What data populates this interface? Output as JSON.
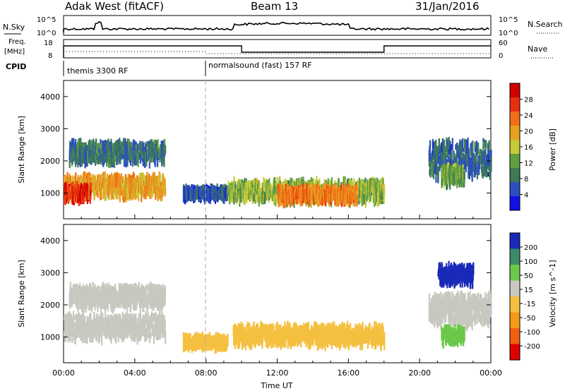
{
  "header": {
    "station": "Adak West (fitACF)",
    "beam": "Beam 13",
    "date": "31/Jan/2016"
  },
  "strips": {
    "sky": {
      "label": "N.Sky",
      "right_label": "N.Search",
      "left_ticks": [
        "10^5",
        "10^0"
      ],
      "right_ticks": [
        "10^5",
        "10^0"
      ]
    },
    "freq": {
      "label_line1": "Freq.",
      "label_line2": "[MHz]",
      "right_label": "Nave",
      "left_ticks": [
        "18",
        "8"
      ],
      "right_ticks": [
        "60",
        "0"
      ]
    },
    "cpid": {
      "label": "CPID",
      "modes": [
        {
          "name": "themis 3300 RF",
          "start_h": 0
        },
        {
          "name": "normalsound (fast) 157 RF",
          "start_h": 8
        }
      ]
    }
  },
  "chart_data": [
    {
      "type": "heatmap",
      "name": "power",
      "ylabel": "Slant Range [km]",
      "ylim": [
        200,
        4500
      ],
      "yticks": [
        1000,
        2000,
        3000,
        4000
      ],
      "xlim": [
        0,
        24
      ],
      "colorbar": {
        "label": "Power [dB]",
        "range": [
          0,
          32
        ],
        "ticks": [
          "28",
          "24",
          "20",
          "16",
          "12",
          "8",
          "4"
        ]
      },
      "regions": [
        {
          "h0": 0.0,
          "h1": 5.7,
          "r_center": 1250,
          "r_width": 500,
          "value": 20
        },
        {
          "h0": 0.0,
          "h1": 1.5,
          "r_center": 1050,
          "r_width": 300,
          "value": 27
        },
        {
          "h0": 0.3,
          "h1": 5.7,
          "r_center": 2300,
          "r_width": 500,
          "value": 8
        },
        {
          "h0": 6.7,
          "h1": 9.2,
          "r_center": 1050,
          "r_width": 150,
          "value": 6
        },
        {
          "h0": 9.2,
          "h1": 18.0,
          "r_center": 1100,
          "r_width": 500,
          "value": 14
        },
        {
          "h0": 12.0,
          "h1": 16.5,
          "r_center": 1000,
          "r_width": 300,
          "value": 22
        },
        {
          "h0": 20.5,
          "h1": 24.0,
          "r_center": 2100,
          "r_width": 1000,
          "value": 7
        },
        {
          "h0": 21.2,
          "h1": 22.5,
          "r_center": 1600,
          "r_width": 400,
          "value": 12
        }
      ]
    },
    {
      "type": "heatmap",
      "name": "velocity",
      "ylabel": "Slant Range [km]",
      "xlabel": "Time UT",
      "ylim": [
        200,
        4500
      ],
      "yticks": [
        1000,
        2000,
        3000,
        4000
      ],
      "xlim": [
        0,
        24
      ],
      "xticklabels": [
        "00:00",
        "04:00",
        "08:00",
        "12:00",
        "16:00",
        "20:00",
        "00:00"
      ],
      "colorbar": {
        "label": "Velocity [m s^-1]",
        "ticks": [
          "200",
          "100",
          "50",
          "15",
          "-15",
          "-50",
          "-100",
          "-200"
        ]
      },
      "regions": [
        {
          "h0": 0.0,
          "h1": 5.7,
          "r_center": 1350,
          "r_width": 600,
          "value": 0
        },
        {
          "h0": 0.3,
          "h1": 5.7,
          "r_center": 2300,
          "r_width": 500,
          "value": 0
        },
        {
          "h0": 6.7,
          "h1": 9.2,
          "r_center": 900,
          "r_width": 200,
          "value": -40
        },
        {
          "h0": 9.5,
          "h1": 18.0,
          "r_center": 1100,
          "r_width": 450,
          "value": -35
        },
        {
          "h0": 20.5,
          "h1": 24.0,
          "r_center": 1900,
          "r_width": 800,
          "value": 0
        },
        {
          "h0": 21.2,
          "h1": 22.5,
          "r_center": 1100,
          "r_width": 300,
          "value": 30
        },
        {
          "h0": 21.0,
          "h1": 23.0,
          "r_center": 3000,
          "r_width": 400,
          "value": 150
        }
      ]
    }
  ],
  "colors": {
    "power_scale": [
      "#1010e6",
      "#2b4fbf",
      "#3d7a55",
      "#5fa040",
      "#c7c93a",
      "#e8a020",
      "#f07018",
      "#e83010",
      "#d00000"
    ],
    "velocity_scale": [
      "#e00000",
      "#f06010",
      "#f59a18",
      "#f5c040",
      "#c8c8c0",
      "#6cc84a",
      "#3d8a6a",
      "#1a2ab8"
    ],
    "dashed_line": "#aaaaaa"
  }
}
